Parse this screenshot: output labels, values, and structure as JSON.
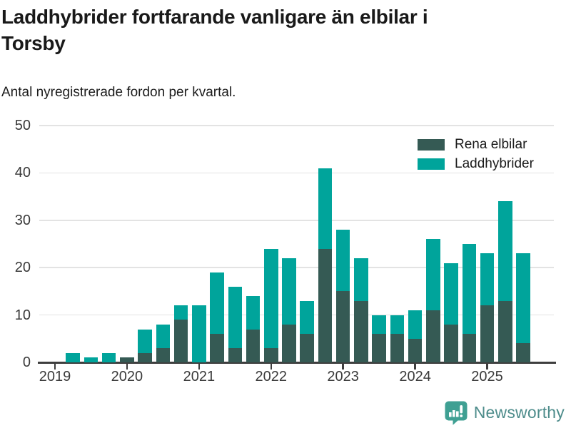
{
  "header": {
    "title": "Laddhybrider fortfarande vanligare än elbilar i\nTorsby",
    "subtitle": "Antal nyregistrerade fordon per kvartal."
  },
  "footer": {
    "brand": "Newsworthy"
  },
  "colors": {
    "axis": "#3e3e3e",
    "grid": "#e3e3e3",
    "logo_icon": "#3fa093",
    "logo_text": "#4d8c8b"
  },
  "chart_data": {
    "type": "bar",
    "stacked": true,
    "title": "Laddhybrider fortfarande vanligare än elbilar i Torsby",
    "subtitle": "Antal nyregistrerade fordon per kvartal.",
    "x": [
      "2019-K1",
      "2019-K2",
      "2019-K3",
      "2019-K4",
      "2020-K1",
      "2020-K2",
      "2020-K3",
      "2020-K4",
      "2021-K1",
      "2021-K2",
      "2021-K3",
      "2021-K4",
      "2022-K1",
      "2022-K2",
      "2022-K3",
      "2022-K4",
      "2023-K1",
      "2023-K2",
      "2023-K3",
      "2023-K4",
      "2024-K1",
      "2024-K2",
      "2024-K3",
      "2024-K4",
      "2025-K1",
      "2025-K2",
      "2025-K3"
    ],
    "series": [
      {
        "name": "Rena elbilar",
        "color": "#355a54",
        "values": [
          0,
          0,
          0,
          0,
          1,
          2,
          3,
          9,
          0,
          6,
          3,
          7,
          3,
          8,
          6,
          24,
          15,
          13,
          6,
          6,
          5,
          11,
          8,
          6,
          12,
          13,
          4
        ]
      },
      {
        "name": "Laddhybrider",
        "color": "#00a49b",
        "values": [
          0,
          2,
          1,
          2,
          0,
          5,
          5,
          3,
          12,
          13,
          13,
          7,
          21,
          14,
          7,
          17,
          13,
          9,
          4,
          4,
          6,
          15,
          13,
          19,
          11,
          21,
          19
        ]
      }
    ],
    "xticks": [
      {
        "label": "2019",
        "quarter_index": 0
      },
      {
        "label": "2020",
        "quarter_index": 4
      },
      {
        "label": "2021",
        "quarter_index": 8
      },
      {
        "label": "2022",
        "quarter_index": 12
      },
      {
        "label": "2023",
        "quarter_index": 16
      },
      {
        "label": "2024",
        "quarter_index": 20
      },
      {
        "label": "2025",
        "quarter_index": 24
      }
    ],
    "yticks": [
      0,
      10,
      20,
      30,
      40,
      50
    ],
    "ylim": [
      0,
      50
    ],
    "xlabel": "",
    "ylabel": "",
    "grid": true,
    "legend_position": "upper-right"
  }
}
